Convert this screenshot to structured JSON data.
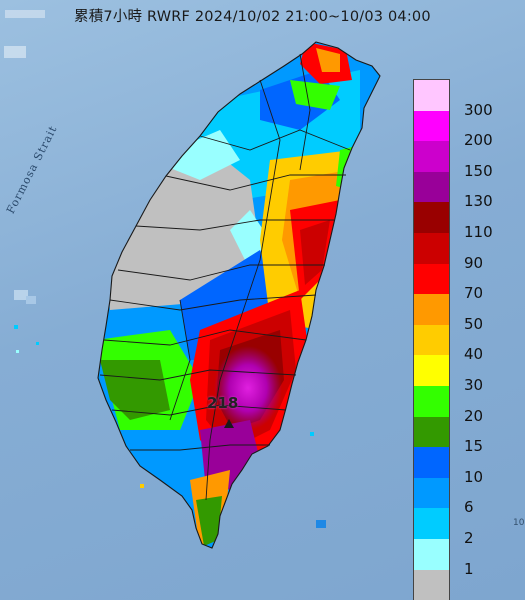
{
  "title": "累積7小時 RWRF 2024/10/02 21:00~10/03 04:00",
  "map_labels": {
    "strait": "Formosa Strait",
    "max_value": "218",
    "corner_mark": "10"
  },
  "legend": {
    "items": [
      {
        "label": "300",
        "color": "#ffc6ff"
      },
      {
        "label": "200",
        "color": "#ff00ff"
      },
      {
        "label": "150",
        "color": "#cc00cc"
      },
      {
        "label": "130",
        "color": "#990099"
      },
      {
        "label": "110",
        "color": "#990000"
      },
      {
        "label": "90",
        "color": "#cc0000"
      },
      {
        "label": "70",
        "color": "#ff0000"
      },
      {
        "label": "50",
        "color": "#ff9900"
      },
      {
        "label": "40",
        "color": "#ffcc00"
      },
      {
        "label": "30",
        "color": "#ffff00"
      },
      {
        "label": "20",
        "color": "#33ff00"
      },
      {
        "label": "15",
        "color": "#339900"
      },
      {
        "label": "10",
        "color": "#0066ff"
      },
      {
        "label": "6",
        "color": "#0099ff"
      },
      {
        "label": "2",
        "color": "#00ccff"
      },
      {
        "label": "1",
        "color": "#99ffff"
      },
      {
        "label": "",
        "color": "#c0c0c0"
      }
    ]
  }
}
